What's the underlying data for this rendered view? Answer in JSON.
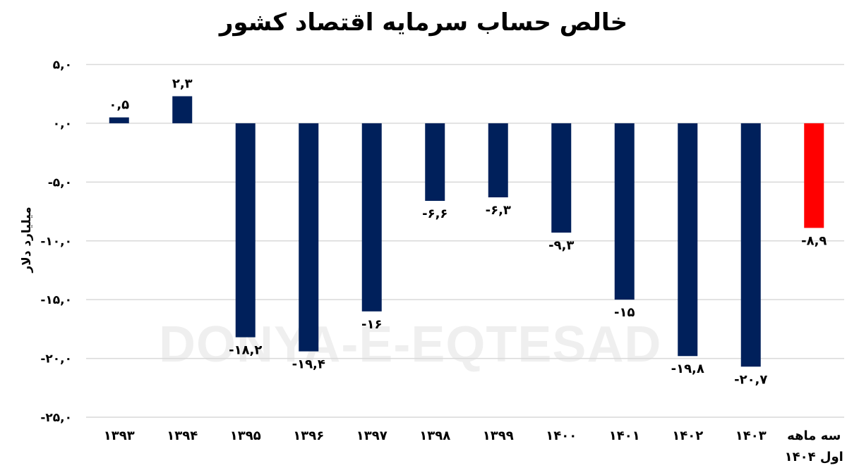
{
  "chart_data": {
    "type": "bar",
    "title": "خالص حساب سرمایه اقتصاد کشور",
    "ylabel": "میلیارد دلار",
    "xlabel": "",
    "ylim": [
      -25,
      5
    ],
    "yticks": [
      5,
      0,
      -5,
      -10,
      -15,
      -20,
      -25
    ],
    "ytick_labels": [
      "۵,۰",
      "۰,۰",
      "-۵,۰",
      "-۱۰,۰",
      "-۱۵,۰",
      "-۲۰,۰",
      "-۲۵,۰"
    ],
    "grid": true,
    "categories": [
      "۱۳۹۳",
      "۱۳۹۴",
      "۱۳۹۵",
      "۱۳۹۶",
      "۱۳۹۷",
      "۱۳۹۸",
      "۱۳۹۹",
      "۱۴۰۰",
      "۱۴۰۱",
      "۱۴۰۲",
      "۱۴۰۳",
      "سه ماهه|اول ۱۴۰۴"
    ],
    "values": [
      0.5,
      2.3,
      -18.2,
      -19.4,
      -16,
      -6.6,
      -6.3,
      -9.3,
      -15,
      -19.8,
      -20.7,
      -8.9
    ],
    "data_labels": [
      "۰,۵",
      "۲,۳",
      "-۱۸,۲",
      "-۱۹,۴",
      "-۱۶",
      "-۶,۶",
      "-۶,۳",
      "-۹,۳",
      "-۱۵",
      "-۱۹,۸",
      "-۲۰,۷",
      "-۸,۹"
    ],
    "colors": [
      "#00205b",
      "#00205b",
      "#00205b",
      "#00205b",
      "#00205b",
      "#00205b",
      "#00205b",
      "#00205b",
      "#00205b",
      "#00205b",
      "#00205b",
      "#ff0000"
    ],
    "gridline_color": "#d9d9d9"
  },
  "watermark": "DONYA-E-EQTESAD"
}
